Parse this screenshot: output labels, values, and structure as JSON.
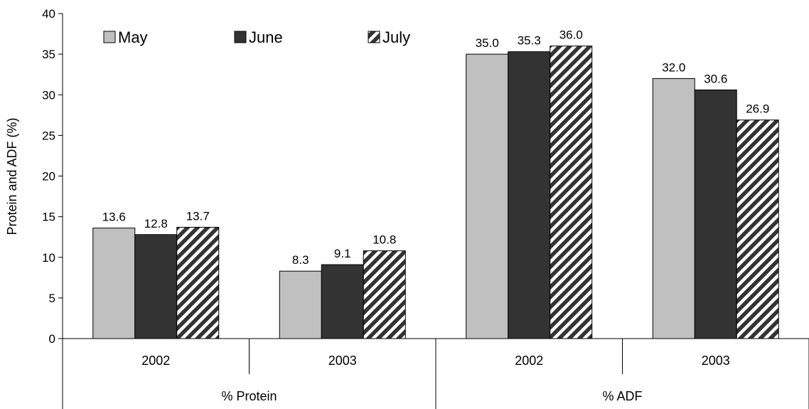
{
  "chart_data": {
    "type": "bar",
    "title": "",
    "xlabel": "",
    "ylabel": "Protein and ADF (%)",
    "ylim": [
      0,
      40
    ],
    "yticks": [
      "0",
      "5",
      "10",
      "15",
      "20",
      "25",
      "30",
      "35",
      "40"
    ],
    "grid": false,
    "legend_position": "top-left",
    "groups": [
      {
        "label": "% Protein",
        "categories": [
          "2002",
          "2003"
        ]
      },
      {
        "label": "% ADF",
        "categories": [
          "2002",
          "2003"
        ]
      }
    ],
    "categories": [
      "2002",
      "2003",
      "2002",
      "2003"
    ],
    "series": [
      {
        "name": "May",
        "values": [
          13.6,
          8.3,
          35.0,
          32.0
        ],
        "labels": [
          "13.6",
          "8.3",
          "35.0",
          "32.0"
        ],
        "color": "#c0c0c0",
        "pattern": "solid"
      },
      {
        "name": "June",
        "values": [
          12.8,
          9.1,
          35.3,
          30.6
        ],
        "labels": [
          "12.8",
          "9.1",
          "35.3",
          "30.6"
        ],
        "color": "#333333",
        "pattern": "solid"
      },
      {
        "name": "July",
        "values": [
          13.7,
          10.8,
          36.0,
          26.9
        ],
        "labels": [
          "13.7",
          "10.8",
          "36.0",
          "26.9"
        ],
        "color": "#333333",
        "pattern": "diagonal-stripes"
      }
    ]
  }
}
